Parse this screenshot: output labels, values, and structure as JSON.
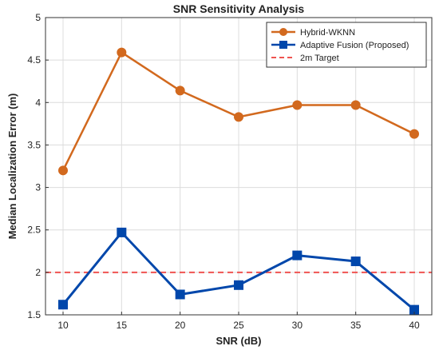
{
  "chart_data": {
    "type": "line",
    "title": "SNR Sensitivity Analysis",
    "xlabel": "SNR (dB)",
    "ylabel": "Median Localization Error (m)",
    "x": [
      10,
      15,
      20,
      25,
      30,
      35,
      40
    ],
    "x_ticks": [
      "10",
      "15",
      "20",
      "25",
      "30",
      "35",
      "40"
    ],
    "y_ticks": [
      "1.5",
      "2",
      "2.5",
      "3",
      "3.5",
      "4",
      "4.5",
      "5"
    ],
    "xlim": [
      8.5,
      41.5
    ],
    "ylim": [
      1.5,
      5
    ],
    "grid": true,
    "legend_position": "top-right",
    "series": [
      {
        "name": "Hybrid-WKNN",
        "values": [
          3.2,
          4.59,
          4.14,
          3.83,
          3.97,
          3.97,
          3.63
        ],
        "color": "#d2691e",
        "marker": "circle",
        "line_style": "solid"
      },
      {
        "name": "Adaptive Fusion (Proposed)",
        "values": [
          1.62,
          2.47,
          1.74,
          1.85,
          2.2,
          2.13,
          1.56
        ],
        "color": "#0047ab",
        "marker": "square",
        "line_style": "solid"
      }
    ],
    "reference_lines": [
      {
        "name": "2m Target",
        "y": 2,
        "color": "#ef5350",
        "line_style": "dashed"
      }
    ]
  }
}
